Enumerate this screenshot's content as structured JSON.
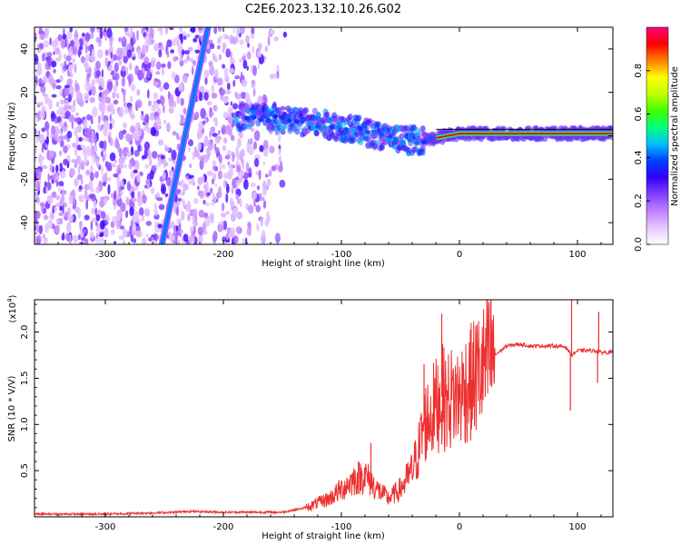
{
  "title": "C2E6.2023.132.10.26.G02",
  "chart_data": [
    {
      "type": "heatmap",
      "xlabel": "Height of straight line (km)",
      "ylabel": "Frequency (Hz)",
      "xlim": [
        -360,
        130
      ],
      "ylim": [
        -50,
        50
      ],
      "xticks": [
        -300,
        -200,
        -100,
        0,
        100
      ],
      "yticks": [
        -40,
        -20,
        0,
        20,
        40
      ],
      "colorbar": {
        "label": "Normalized spectral amplitude",
        "range": [
          0.0,
          1.0
        ],
        "ticks": [
          "0.0",
          "0.2",
          "0.4",
          "0.6",
          "0.8"
        ],
        "colormap": [
          "#ffffff",
          "#e6c8ff",
          "#c080ff",
          "#8040ff",
          "#3300ff",
          "#0040ff",
          "#00c0ff",
          "#00ff80",
          "#40ff00",
          "#c0ff00",
          "#ffff00",
          "#ff8000",
          "#ff0000",
          "#ff0080"
        ]
      },
      "features": {
        "tilted_line": {
          "x": [
            -252,
            -213
          ],
          "y": [
            -50,
            50
          ],
          "amplitude": 0.42
        },
        "carrier_trace": {
          "x": [
            -190,
            -170,
            -150,
            -130,
            -110,
            -90,
            -75,
            -60,
            -45,
            -30,
            -20,
            -10,
            0,
            20,
            40,
            60,
            80,
            100,
            120,
            130
          ],
          "y": [
            9,
            9,
            7,
            6,
            5,
            3,
            1,
            -1,
            -2,
            -2,
            -1,
            0,
            1,
            1,
            1,
            1,
            1,
            1,
            1,
            1
          ]
        },
        "noise_region_x": [
          -360,
          -140
        ]
      }
    },
    {
      "type": "line",
      "xlabel": "Height of straight line (km)",
      "ylabel": "SNR (10 * V/V)",
      "y_multiplier": "(x10",
      "y_exponent": "4",
      "y_multiplier_close": ")",
      "xlim": [
        -360,
        130
      ],
      "ylim": [
        0,
        2.35
      ],
      "xticks": [
        -300,
        -200,
        -100,
        0,
        100
      ],
      "yticks": [
        "0.5",
        "1.0",
        "1.5",
        "2.0"
      ],
      "line_color": "#ee3030",
      "series": [
        {
          "x": [
            -360,
            -300,
            -240,
            -230,
            -200,
            -150,
            -130,
            -110,
            -100,
            -90,
            -80,
            -70,
            -60,
            -50,
            -40,
            -35,
            -30,
            -25,
            -20,
            -15,
            -10,
            -5,
            0,
            5,
            10,
            15,
            20,
            25,
            30,
            40,
            50,
            60,
            70,
            80,
            90,
            95,
            100,
            110,
            115,
            120,
            130
          ],
          "y": [
            0.03,
            0.03,
            0.05,
            0.06,
            0.05,
            0.05,
            0.1,
            0.2,
            0.3,
            0.4,
            0.45,
            0.3,
            0.2,
            0.3,
            0.5,
            0.7,
            1.0,
            1.1,
            1.2,
            1.3,
            1.25,
            1.3,
            1.3,
            1.4,
            1.45,
            1.55,
            1.6,
            1.7,
            1.75,
            1.85,
            1.87,
            1.85,
            1.85,
            1.85,
            1.84,
            1.75,
            1.8,
            1.8,
            1.8,
            1.78,
            1.78
          ]
        }
      ],
      "spikes": [
        {
          "x": -15,
          "y": 2.2
        },
        {
          "x": -30,
          "y": 1.65
        },
        {
          "x": -75,
          "y": 0.8
        },
        {
          "x": 95,
          "y": 2.35
        },
        {
          "x": 118,
          "y": 2.22
        },
        {
          "x": 94,
          "y": 1.15
        },
        {
          "x": 117,
          "y": 1.45
        }
      ]
    }
  ]
}
